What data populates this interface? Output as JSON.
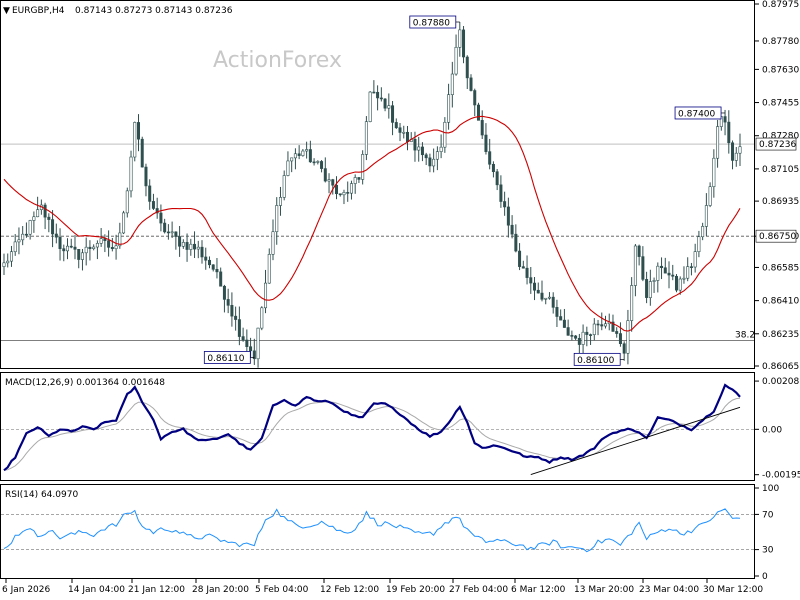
{
  "chart_data": [
    {
      "type": "candlestick",
      "header": "EURGBP,H4",
      "ohlc_label": "0.87143 0.87273 0.87143 0.87236",
      "watermark": "ActionForex",
      "ylim": [
        0.86065,
        0.87975
      ],
      "y_ticks": [
        0.87975,
        0.8778,
        0.8763,
        0.87455,
        0.8728,
        0.87105,
        0.86935,
        0.8675,
        0.86585,
        0.8641,
        0.86235,
        0.86065
      ],
      "y_tick_labels": [
        "0.87975",
        "0.87780",
        "0.87630",
        "0.87455",
        "0.87280",
        "0.87105",
        "0.86935",
        "0.86750",
        "0.86585",
        "0.86410",
        "0.86235",
        "0.86065"
      ],
      "current_price": 0.87236,
      "current_price_label": "0.87236",
      "level_line": 0.8675,
      "level_line_label": "0.86750",
      "fib_line": 0.862,
      "fib_label": "38.2",
      "annotations": [
        {
          "label": "0.87880",
          "price": 0.8788,
          "bar": 122
        },
        {
          "label": "0.87400",
          "price": 0.874,
          "bar": 193
        },
        {
          "label": "0.86110",
          "price": 0.8611,
          "bar": 67
        },
        {
          "label": "0.86100",
          "price": 0.861,
          "bar": 166
        }
      ],
      "series": [
        {
          "name": "Moving Average",
          "color": "#cc0000"
        }
      ],
      "price_path": [
        [
          0,
          0.866
        ],
        [
          5,
          0.8675
        ],
        [
          10,
          0.869
        ],
        [
          15,
          0.867
        ],
        [
          20,
          0.8665
        ],
        [
          25,
          0.8672
        ],
        [
          30,
          0.8668
        ],
        [
          33,
          0.87
        ],
        [
          35,
          0.8735
        ],
        [
          38,
          0.87
        ],
        [
          42,
          0.868
        ],
        [
          47,
          0.8672
        ],
        [
          52,
          0.8668
        ],
        [
          56,
          0.8658
        ],
        [
          60,
          0.864
        ],
        [
          63,
          0.8625
        ],
        [
          65,
          0.8618
        ],
        [
          67,
          0.8612
        ],
        [
          70,
          0.865
        ],
        [
          73,
          0.869
        ],
        [
          76,
          0.8715
        ],
        [
          80,
          0.872
        ],
        [
          85,
          0.871
        ],
        [
          90,
          0.8695
        ],
        [
          95,
          0.8705
        ],
        [
          98,
          0.875
        ],
        [
          102,
          0.8745
        ],
        [
          106,
          0.873
        ],
        [
          110,
          0.8722
        ],
        [
          114,
          0.8715
        ],
        [
          117,
          0.872
        ],
        [
          120,
          0.876
        ],
        [
          122,
          0.8785
        ],
        [
          124,
          0.876
        ],
        [
          127,
          0.8735
        ],
        [
          130,
          0.8712
        ],
        [
          134,
          0.869
        ],
        [
          138,
          0.866
        ],
        [
          142,
          0.8648
        ],
        [
          146,
          0.864
        ],
        [
          150,
          0.8625
        ],
        [
          154,
          0.862
        ],
        [
          158,
          0.8628
        ],
        [
          162,
          0.8632
        ],
        [
          166,
          0.8612
        ],
        [
          169,
          0.867
        ],
        [
          172,
          0.8645
        ],
        [
          176,
          0.866
        ],
        [
          180,
          0.8648
        ],
        [
          184,
          0.866
        ],
        [
          187,
          0.868
        ],
        [
          189,
          0.87
        ],
        [
          191,
          0.8735
        ],
        [
          193,
          0.8738
        ],
        [
          195,
          0.8715
        ],
        [
          197,
          0.8723
        ]
      ]
    },
    {
      "type": "line",
      "name": "MACD(12,26,9) 0.001364 0.001648",
      "ylim": [
        -0.0021,
        0.0023
      ],
      "y_ticks": [
        0.002081,
        0.0,
        -0.001957
      ],
      "y_tick_labels": [
        "0.002081",
        "0.00",
        "-0.001957"
      ],
      "series": [
        {
          "name": "MACD",
          "color": "#000080"
        },
        {
          "name": "Signal",
          "color": "#aaaaaa"
        }
      ],
      "macd_path": [
        [
          0,
          -0.0018
        ],
        [
          3,
          -0.0012
        ],
        [
          6,
          -0.0002
        ],
        [
          9,
          0.0001
        ],
        [
          12,
          -0.0003
        ],
        [
          15,
          0.0
        ],
        [
          18,
          -0.0001
        ],
        [
          21,
          0.0001
        ],
        [
          24,
          0.0
        ],
        [
          27,
          0.0003
        ],
        [
          30,
          0.0004
        ],
        [
          33,
          0.0015
        ],
        [
          35,
          0.0018
        ],
        [
          37,
          0.0012
        ],
        [
          40,
          0.0004
        ],
        [
          42,
          -0.0004
        ],
        [
          45,
          -0.0001
        ],
        [
          48,
          0.0
        ],
        [
          51,
          -0.0004
        ],
        [
          54,
          -0.0005
        ],
        [
          57,
          -0.0004
        ],
        [
          60,
          -0.0002
        ],
        [
          63,
          -0.0006
        ],
        [
          66,
          -0.0009
        ],
        [
          69,
          -0.0004
        ],
        [
          72,
          0.001
        ],
        [
          75,
          0.0013
        ],
        [
          78,
          0.001
        ],
        [
          81,
          0.0014
        ],
        [
          84,
          0.0012
        ],
        [
          87,
          0.0012
        ],
        [
          90,
          0.0009
        ],
        [
          93,
          0.0006
        ],
        [
          96,
          0.0005
        ],
        [
          99,
          0.0011
        ],
        [
          102,
          0.0011
        ],
        [
          105,
          0.0008
        ],
        [
          108,
          0.0004
        ],
        [
          111,
          0.0
        ],
        [
          114,
          -0.0003
        ],
        [
          117,
          -0.0001
        ],
        [
          120,
          0.0005
        ],
        [
          122,
          0.001
        ],
        [
          124,
          0.0003
        ],
        [
          126,
          -0.0006
        ],
        [
          128,
          -0.0008
        ],
        [
          131,
          -0.0007
        ],
        [
          134,
          -0.0008
        ],
        [
          137,
          -0.001
        ],
        [
          140,
          -0.0012
        ],
        [
          143,
          -0.0012
        ],
        [
          146,
          -0.0014
        ],
        [
          149,
          -0.0012
        ],
        [
          152,
          -0.0013
        ],
        [
          155,
          -0.0011
        ],
        [
          158,
          -0.0008
        ],
        [
          161,
          -0.0003
        ],
        [
          164,
          -0.0001
        ],
        [
          167,
          0.0
        ],
        [
          170,
          -0.0001
        ],
        [
          172,
          -0.0004
        ],
        [
          175,
          0.0005
        ],
        [
          178,
          0.0004
        ],
        [
          181,
          0.0002
        ],
        [
          184,
          0.0
        ],
        [
          187,
          0.0004
        ],
        [
          190,
          0.0008
        ],
        [
          193,
          0.0019
        ],
        [
          195,
          0.0017
        ],
        [
          197,
          0.0014
        ]
      ]
    },
    {
      "type": "line",
      "name": "RSI(14) 64.0970",
      "ylim": [
        0,
        100
      ],
      "y_ticks": [
        100,
        70,
        30,
        0
      ],
      "y_tick_labels": [
        "100",
        "70",
        "30",
        "0"
      ],
      "series": [
        {
          "name": "RSI",
          "color": "#1e90ff"
        }
      ],
      "rsi_path": [
        [
          0,
          30
        ],
        [
          3,
          45
        ],
        [
          6,
          55
        ],
        [
          9,
          46
        ],
        [
          12,
          52
        ],
        [
          15,
          44
        ],
        [
          18,
          47
        ],
        [
          21,
          50
        ],
        [
          24,
          47
        ],
        [
          27,
          55
        ],
        [
          30,
          58
        ],
        [
          33,
          72
        ],
        [
          35,
          73
        ],
        [
          37,
          56
        ],
        [
          40,
          50
        ],
        [
          43,
          54
        ],
        [
          46,
          52
        ],
        [
          49,
          45
        ],
        [
          52,
          44
        ],
        [
          55,
          45
        ],
        [
          58,
          41
        ],
        [
          61,
          37
        ],
        [
          64,
          36
        ],
        [
          67,
          35
        ],
        [
          70,
          65
        ],
        [
          73,
          74
        ],
        [
          76,
          62
        ],
        [
          79,
          57
        ],
        [
          82,
          58
        ],
        [
          85,
          62
        ],
        [
          88,
          55
        ],
        [
          91,
          49
        ],
        [
          94,
          54
        ],
        [
          97,
          71
        ],
        [
          100,
          60
        ],
        [
          103,
          59
        ],
        [
          106,
          55
        ],
        [
          109,
          50
        ],
        [
          112,
          47
        ],
        [
          115,
          49
        ],
        [
          118,
          60
        ],
        [
          121,
          68
        ],
        [
          123,
          58
        ],
        [
          126,
          44
        ],
        [
          129,
          39
        ],
        [
          132,
          41
        ],
        [
          135,
          37
        ],
        [
          138,
          36
        ],
        [
          141,
          31
        ],
        [
          144,
          35
        ],
        [
          147,
          39
        ],
        [
          150,
          32
        ],
        [
          153,
          33
        ],
        [
          156,
          30
        ],
        [
          159,
          38
        ],
        [
          162,
          42
        ],
        [
          165,
          35
        ],
        [
          168,
          50
        ],
        [
          170,
          60
        ],
        [
          172,
          42
        ],
        [
          175,
          50
        ],
        [
          178,
          55
        ],
        [
          181,
          48
        ],
        [
          184,
          52
        ],
        [
          187,
          58
        ],
        [
          190,
          68
        ],
        [
          193,
          76
        ],
        [
          195,
          66
        ],
        [
          197,
          64
        ]
      ]
    }
  ],
  "x_axis": {
    "labels": [
      "6 Jan 2026",
      "14 Jan 04:00",
      "21 Jan 12:00",
      "28 Jan 20:00",
      "5 Feb 04:00",
      "12 Feb 12:00",
      "19 Feb 20:00",
      "27 Feb 04:00",
      "6 Mar 12:00",
      "13 Mar 20:00",
      "23 Mar 04:00",
      "30 Mar 12:00"
    ],
    "label_bars": [
      0,
      23,
      46,
      70,
      93,
      117,
      140,
      163,
      186,
      209,
      232,
      256
    ]
  },
  "colors": {
    "candle": "#2f4f4f",
    "ma": "#cc0000",
    "macd": "#000080",
    "signal": "#aaaaaa",
    "rsi": "#1e90ff",
    "annotation_border": "#000080",
    "watermark": "#c8c8c8"
  }
}
